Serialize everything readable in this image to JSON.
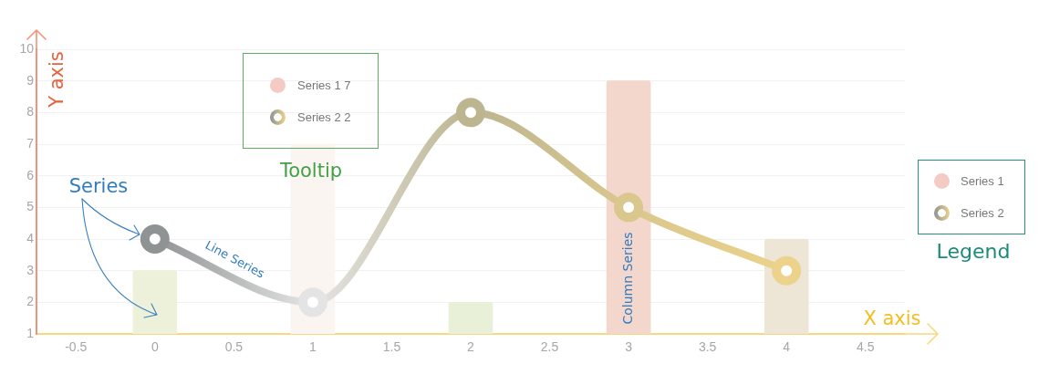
{
  "chart_data": {
    "type": "bar",
    "x": [
      0,
      1,
      2,
      3,
      4
    ],
    "series": [
      {
        "name": "Series 1",
        "color": "#f3cbc4",
        "colors": [
          "#edf1da",
          "#fbf5f1",
          "#e8f1d7",
          "#f3d6cc",
          "#ede6d7"
        ],
        "values": [
          3,
          7,
          2,
          9,
          4
        ]
      },
      {
        "name": "Series 2",
        "type": "line",
        "colors": [
          "#8f9393",
          "#e4e4e4",
          "#bdb590",
          "#d9c78d",
          "#ecd28b"
        ],
        "values": [
          4,
          2,
          8,
          5,
          3
        ]
      }
    ],
    "xlabel": "X axis",
    "ylabel": "Y axis",
    "xlim": [
      -0.75,
      4.75
    ],
    "xticks": [
      -0.5,
      0,
      0.5,
      1,
      1.5,
      2,
      2.5,
      3,
      3.5,
      4,
      4.5
    ],
    "ylim": [
      1,
      10
    ],
    "yticks": [
      1,
      2,
      3,
      4,
      5,
      6,
      7,
      8,
      9,
      10
    ],
    "grid": "y",
    "legend": "right",
    "marker": "circle",
    "annotations": [
      "Series",
      "Line Series",
      "Column Series",
      "Tooltip",
      "Series 1 7",
      "Series 2 2",
      "Legend"
    ]
  }
}
